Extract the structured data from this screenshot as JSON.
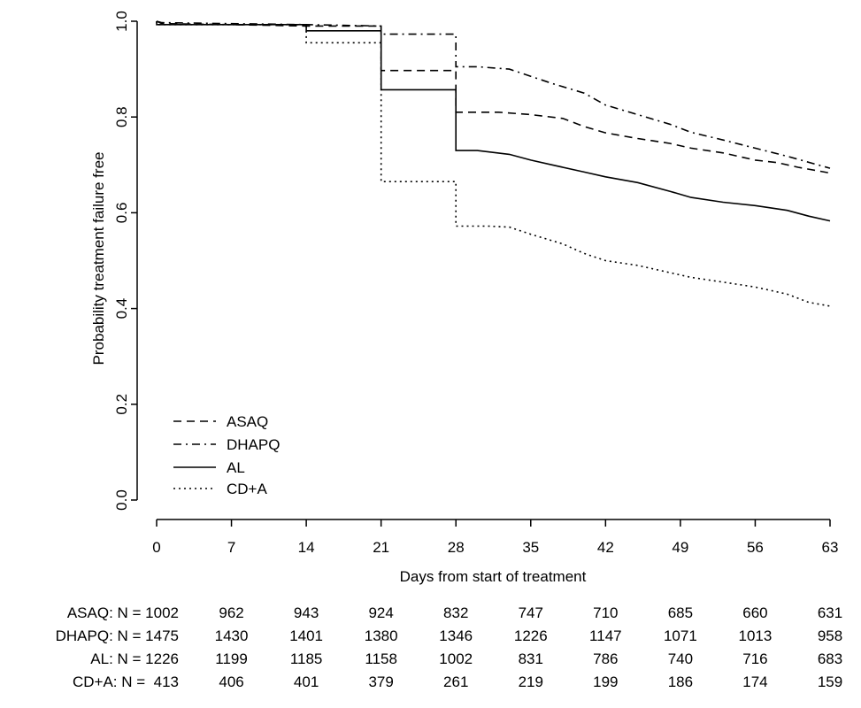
{
  "chart_data": {
    "type": "line",
    "title": "",
    "xlabel": "Days from start of treatment",
    "ylabel": "Probability treatment failure free",
    "xlim": [
      0,
      63
    ],
    "ylim": [
      0,
      1
    ],
    "x_ticks": [
      0,
      7,
      14,
      21,
      28,
      35,
      42,
      49,
      56,
      63
    ],
    "x_tick_labels": [
      "0",
      "7",
      "14",
      "21",
      "28",
      "35",
      "42",
      "49",
      "56",
      "63"
    ],
    "y_ticks": [
      0,
      0.2,
      0.4,
      0.6,
      0.8,
      1.0
    ],
    "y_tick_labels": [
      "0.0",
      "0.2",
      "0.4",
      "0.6",
      "0.8",
      "1.0"
    ],
    "grid": false,
    "legend_position": "bottom-left",
    "series": [
      {
        "name": "ASAQ",
        "line_style": "dashed",
        "color": "#000000",
        "points": [
          [
            0,
            1.0
          ],
          [
            0.5,
            0.995
          ],
          [
            7,
            0.993
          ],
          [
            14,
            0.99
          ],
          [
            21,
            0.99
          ],
          [
            21,
            0.897
          ],
          [
            28,
            0.897
          ],
          [
            28,
            0.81
          ],
          [
            32,
            0.81
          ],
          [
            35,
            0.805
          ],
          [
            38,
            0.797
          ],
          [
            40,
            0.78
          ],
          [
            42,
            0.767
          ],
          [
            45,
            0.755
          ],
          [
            48,
            0.745
          ],
          [
            50,
            0.735
          ],
          [
            53,
            0.725
          ],
          [
            56,
            0.71
          ],
          [
            58,
            0.705
          ],
          [
            60,
            0.695
          ],
          [
            63,
            0.683
          ]
        ]
      },
      {
        "name": "DHAPQ",
        "line_style": "dashdot",
        "color": "#000000",
        "points": [
          [
            0,
            1.0
          ],
          [
            0.5,
            0.997
          ],
          [
            7,
            0.995
          ],
          [
            14,
            0.993
          ],
          [
            21,
            0.99
          ],
          [
            21,
            0.973
          ],
          [
            28,
            0.973
          ],
          [
            28,
            0.905
          ],
          [
            30,
            0.905
          ],
          [
            33,
            0.9
          ],
          [
            35,
            0.885
          ],
          [
            37,
            0.87
          ],
          [
            40,
            0.85
          ],
          [
            42,
            0.825
          ],
          [
            45,
            0.805
          ],
          [
            48,
            0.785
          ],
          [
            50,
            0.768
          ],
          [
            53,
            0.752
          ],
          [
            56,
            0.735
          ],
          [
            59,
            0.718
          ],
          [
            63,
            0.693
          ]
        ]
      },
      {
        "name": "AL",
        "line_style": "solid",
        "color": "#000000",
        "points": [
          [
            0,
            1.0
          ],
          [
            0,
            0.993
          ],
          [
            7,
            0.993
          ],
          [
            14,
            0.993
          ],
          [
            14,
            0.98
          ],
          [
            21,
            0.98
          ],
          [
            21,
            0.857
          ],
          [
            28,
            0.857
          ],
          [
            28,
            0.73
          ],
          [
            30,
            0.73
          ],
          [
            33,
            0.722
          ],
          [
            35,
            0.71
          ],
          [
            37,
            0.7
          ],
          [
            40,
            0.685
          ],
          [
            42,
            0.675
          ],
          [
            45,
            0.663
          ],
          [
            48,
            0.645
          ],
          [
            50,
            0.632
          ],
          [
            53,
            0.622
          ],
          [
            56,
            0.615
          ],
          [
            59,
            0.605
          ],
          [
            61,
            0.593
          ],
          [
            63,
            0.583
          ]
        ]
      },
      {
        "name": "CD+A",
        "line_style": "dotted",
        "color": "#000000",
        "points": [
          [
            0,
            1.0
          ],
          [
            0,
            0.993
          ],
          [
            7,
            0.993
          ],
          [
            14,
            0.993
          ],
          [
            14,
            0.955
          ],
          [
            21,
            0.955
          ],
          [
            21,
            0.665
          ],
          [
            28,
            0.665
          ],
          [
            28,
            0.572
          ],
          [
            31,
            0.572
          ],
          [
            33,
            0.57
          ],
          [
            35,
            0.555
          ],
          [
            38,
            0.535
          ],
          [
            40,
            0.515
          ],
          [
            42,
            0.5
          ],
          [
            45,
            0.49
          ],
          [
            48,
            0.475
          ],
          [
            50,
            0.465
          ],
          [
            53,
            0.455
          ],
          [
            56,
            0.445
          ],
          [
            59,
            0.43
          ],
          [
            61,
            0.413
          ],
          [
            63,
            0.405
          ]
        ]
      }
    ],
    "risk_table": [
      {
        "label": "ASAQ: N = 1002",
        "counts": [
          "962",
          "943",
          "924",
          "832",
          "747",
          "710",
          "685",
          "660",
          "631"
        ]
      },
      {
        "label": "DHAPQ: N = 1475",
        "counts": [
          "1430",
          "1401",
          "1380",
          "1346",
          "1226",
          "1147",
          "1071",
          "1013",
          "958"
        ]
      },
      {
        "label": "AL: N = 1226",
        "counts": [
          "1199",
          "1185",
          "1158",
          "1002",
          "831",
          "786",
          "740",
          "716",
          "683"
        ]
      },
      {
        "label": "CD+A: N =  413",
        "counts": [
          "406",
          "401",
          "379",
          "261",
          "219",
          "199",
          "186",
          "174",
          "159"
        ]
      }
    ]
  }
}
